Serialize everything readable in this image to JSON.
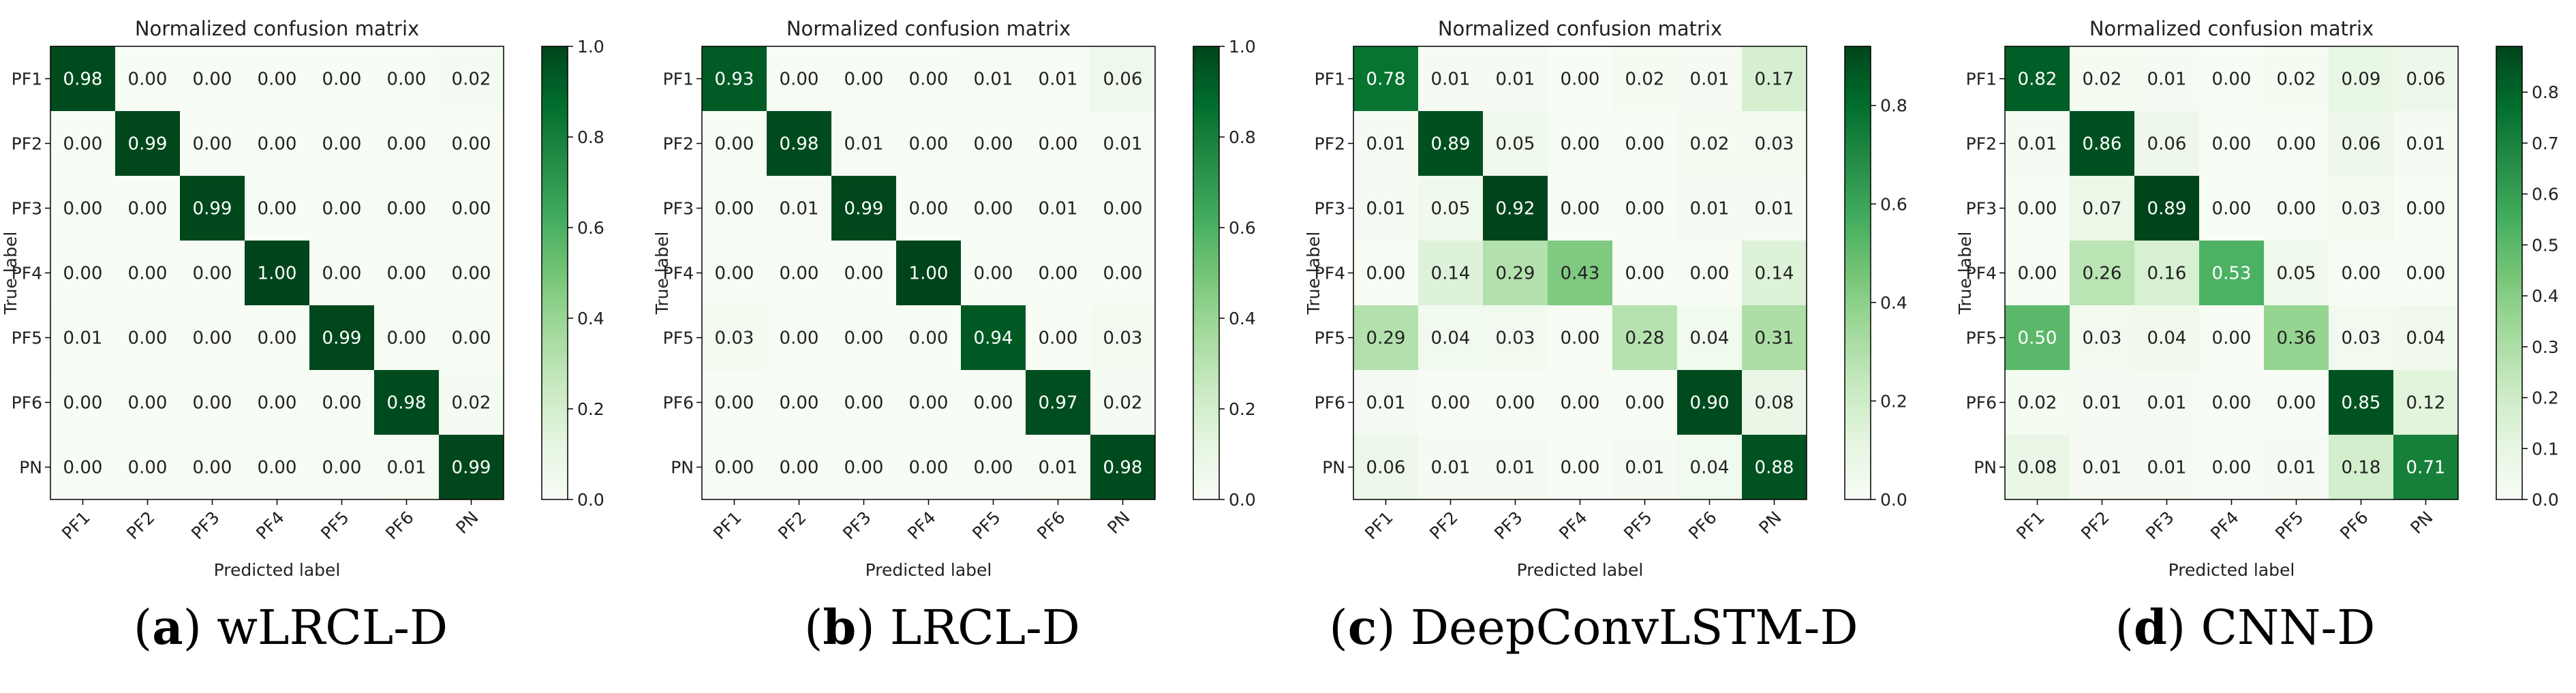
{
  "chart_data": [
    {
      "type": "heatmap",
      "title": "Normalized confusion matrix",
      "xlabel": "Predicted label",
      "ylabel": "True label",
      "x_categories": [
        "PF1",
        "PF2",
        "PF3",
        "PF4",
        "PF5",
        "PF6",
        "PN"
      ],
      "y_categories": [
        "PF1",
        "PF2",
        "PF3",
        "PF4",
        "PF5",
        "PF6",
        "PN"
      ],
      "values": [
        [
          0.98,
          0.0,
          0.0,
          0.0,
          0.0,
          0.0,
          0.02
        ],
        [
          0.0,
          0.99,
          0.0,
          0.0,
          0.0,
          0.0,
          0.0
        ],
        [
          0.0,
          0.0,
          0.99,
          0.0,
          0.0,
          0.0,
          0.0
        ],
        [
          0.0,
          0.0,
          0.0,
          1.0,
          0.0,
          0.0,
          0.0
        ],
        [
          0.01,
          0.0,
          0.0,
          0.0,
          0.99,
          0.0,
          0.0
        ],
        [
          0.0,
          0.0,
          0.0,
          0.0,
          0.0,
          0.98,
          0.02
        ],
        [
          0.0,
          0.0,
          0.0,
          0.0,
          0.0,
          0.01,
          0.99
        ]
      ],
      "colorbar": {
        "min": 0.0,
        "max": 1.0,
        "ticks": [
          "0.0",
          "0.2",
          "0.4",
          "0.6",
          "0.8",
          "1.0"
        ]
      },
      "caption": {
        "letter": "a",
        "text": "wLRCL-D"
      }
    },
    {
      "type": "heatmap",
      "title": "Normalized confusion matrix",
      "xlabel": "Predicted label",
      "ylabel": "True label",
      "x_categories": [
        "PF1",
        "PF2",
        "PF3",
        "PF4",
        "PF5",
        "PF6",
        "PN"
      ],
      "y_categories": [
        "PF1",
        "PF2",
        "PF3",
        "PF4",
        "PF5",
        "PF6",
        "PN"
      ],
      "values": [
        [
          0.93,
          0.0,
          0.0,
          0.0,
          0.01,
          0.01,
          0.06
        ],
        [
          0.0,
          0.98,
          0.01,
          0.0,
          0.0,
          0.0,
          0.01
        ],
        [
          0.0,
          0.01,
          0.99,
          0.0,
          0.0,
          0.01,
          0.0
        ],
        [
          0.0,
          0.0,
          0.0,
          1.0,
          0.0,
          0.0,
          0.0
        ],
        [
          0.03,
          0.0,
          0.0,
          0.0,
          0.94,
          0.0,
          0.03
        ],
        [
          0.0,
          0.0,
          0.0,
          0.0,
          0.0,
          0.97,
          0.02
        ],
        [
          0.0,
          0.0,
          0.0,
          0.0,
          0.0,
          0.01,
          0.98
        ]
      ],
      "colorbar": {
        "min": 0.0,
        "max": 1.0,
        "ticks": [
          "0.0",
          "0.2",
          "0.4",
          "0.6",
          "0.8",
          "1.0"
        ]
      },
      "caption": {
        "letter": "b",
        "text": "LRCL-D"
      }
    },
    {
      "type": "heatmap",
      "title": "Normalized confusion matrix",
      "xlabel": "Predicted label",
      "ylabel": "True label",
      "x_categories": [
        "PF1",
        "PF2",
        "PF3",
        "PF4",
        "PF5",
        "PF6",
        "PN"
      ],
      "y_categories": [
        "PF1",
        "PF2",
        "PF3",
        "PF4",
        "PF5",
        "PF6",
        "PN"
      ],
      "values": [
        [
          0.78,
          0.01,
          0.01,
          0.0,
          0.02,
          0.01,
          0.17
        ],
        [
          0.01,
          0.89,
          0.05,
          0.0,
          0.0,
          0.02,
          0.03
        ],
        [
          0.01,
          0.05,
          0.92,
          0.0,
          0.0,
          0.01,
          0.01
        ],
        [
          0.0,
          0.14,
          0.29,
          0.43,
          0.0,
          0.0,
          0.14
        ],
        [
          0.29,
          0.04,
          0.03,
          0.0,
          0.28,
          0.04,
          0.31
        ],
        [
          0.01,
          0.0,
          0.0,
          0.0,
          0.0,
          0.9,
          0.08
        ],
        [
          0.06,
          0.01,
          0.01,
          0.0,
          0.01,
          0.04,
          0.88
        ]
      ],
      "colorbar": {
        "min": 0.0,
        "max": 0.92,
        "ticks": [
          "0.0",
          "0.2",
          "0.4",
          "0.6",
          "0.8"
        ]
      },
      "caption": {
        "letter": "c",
        "text": "DeepConvLSTM-D"
      }
    },
    {
      "type": "heatmap",
      "title": "Normalized confusion matrix",
      "xlabel": "Predicted label",
      "ylabel": "True label",
      "x_categories": [
        "PF1",
        "PF2",
        "PF3",
        "PF4",
        "PF5",
        "PF6",
        "PN"
      ],
      "y_categories": [
        "PF1",
        "PF2",
        "PF3",
        "PF4",
        "PF5",
        "PF6",
        "PN"
      ],
      "values": [
        [
          0.82,
          0.02,
          0.01,
          0.0,
          0.02,
          0.09,
          0.06
        ],
        [
          0.01,
          0.86,
          0.06,
          0.0,
          0.0,
          0.06,
          0.01
        ],
        [
          0.0,
          0.07,
          0.89,
          0.0,
          0.0,
          0.03,
          0.0
        ],
        [
          0.0,
          0.26,
          0.16,
          0.53,
          0.05,
          0.0,
          0.0
        ],
        [
          0.5,
          0.03,
          0.04,
          0.0,
          0.36,
          0.03,
          0.04
        ],
        [
          0.02,
          0.01,
          0.01,
          0.0,
          0.0,
          0.85,
          0.12
        ],
        [
          0.08,
          0.01,
          0.01,
          0.0,
          0.01,
          0.18,
          0.71
        ]
      ],
      "colorbar": {
        "min": 0.0,
        "max": 0.89,
        "ticks": [
          "0.0",
          "0.1",
          "0.2",
          "0.3",
          "0.4",
          "0.5",
          "0.6",
          "0.7",
          "0.8"
        ]
      },
      "caption": {
        "letter": "d",
        "text": "CNN-D"
      }
    }
  ],
  "colors": {
    "low": "#f7fcf5",
    "high": "#00441b",
    "frame": "#000000"
  }
}
